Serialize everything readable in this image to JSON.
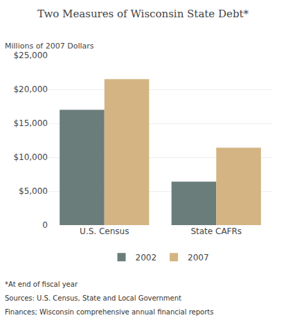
{
  "chart_data": {
    "type": "bar",
    "title": "Two Measures of Wisconsin State Debt*",
    "ylabel": "Millions of 2007 Dollars",
    "categories": [
      "U.S. Census",
      "State CAFRs"
    ],
    "series": [
      {
        "name": "2002",
        "color": "#6b7d7a",
        "values": [
          17000,
          6400
        ]
      },
      {
        "name": "2007",
        "color": "#d4b483",
        "values": [
          21500,
          11400
        ]
      }
    ],
    "ylim": [
      0,
      25000
    ],
    "yticks": [
      0,
      {
        "value": 5000,
        "label": "$5,000"
      },
      {
        "value": 10000,
        "label": "$10,000"
      },
      {
        "value": 15000,
        "label": "$15,000"
      },
      {
        "value": 20000,
        "label": "$20,000"
      },
      {
        "value": 25000,
        "label": "$25,000"
      }
    ],
    "grid": true,
    "legend": "bottom",
    "annotations": [
      "*At end of fiscal year",
      "Sources: U.S. Census, State and Local Government",
      "Finances; Wisconsin comprehensive annual financial reports"
    ]
  }
}
